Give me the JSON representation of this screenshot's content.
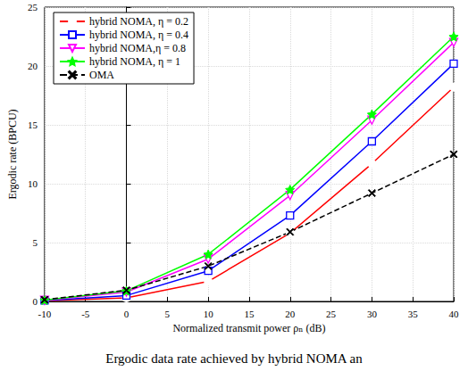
{
  "chart_data": {
    "type": "line",
    "title": "Ergodic data rate achieved by hybrid NOMA an",
    "x_label": "Normalized transmit power ρₙ (dB)",
    "y_label": "Ergodic rate (BPCU)",
    "x": [
      -10,
      0,
      10,
      20,
      30,
      40
    ],
    "series": [
      {
        "name": "hybrid NOMA, η = 0.2",
        "color": "#ff0000",
        "marker": "circle",
        "line_style": "solid",
        "values": [
          0.05,
          0.3,
          1.7,
          5.8,
          11.7,
          18.2
        ]
      },
      {
        "name": "hybrid NOMA, η = 0.4",
        "color": "#0000ff",
        "marker": "square",
        "line_style": "solid",
        "values": [
          0.08,
          0.5,
          2.6,
          7.3,
          13.6,
          20.2
        ]
      },
      {
        "name": "hybrid NOMA,η = 0.8",
        "color": "#ff00ff",
        "marker": "triangle-down",
        "line_style": "solid",
        "values": [
          0.1,
          0.8,
          3.6,
          9.0,
          15.4,
          22.0
        ]
      },
      {
        "name": "hybrid NOMA, η = 1",
        "color": "#00ff00",
        "marker": "star",
        "line_style": "solid",
        "values": [
          0.12,
          0.9,
          4.0,
          9.5,
          15.9,
          22.5
        ]
      },
      {
        "name": "OMA",
        "color": "#000000",
        "marker": "x",
        "line_style": "dashed",
        "values": [
          0.15,
          0.95,
          3.0,
          5.9,
          9.2,
          12.5
        ]
      }
    ],
    "xlim": [
      -10,
      40
    ],
    "xticks": [
      -10,
      -5,
      0,
      5,
      10,
      15,
      20,
      25,
      30,
      35,
      40
    ],
    "ylim": [
      0,
      25
    ],
    "yticks": [
      0,
      5,
      10,
      15,
      20,
      25
    ],
    "grid": true,
    "legend": "top-left"
  }
}
